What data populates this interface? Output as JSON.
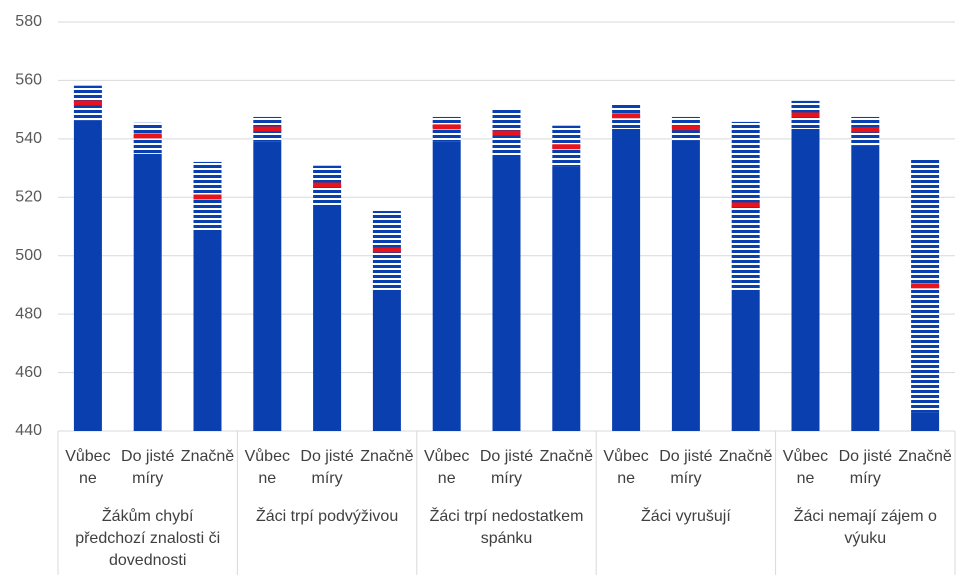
{
  "chart_data": {
    "type": "interval-bar",
    "groups": [
      "Žákům chybí předchozí znalosti či dovednosti",
      "Žáci trpí podvýživou",
      "Žáci trpí nedostatkem spánku",
      "Žáci vyrušují",
      "Žáci nemají zájem o výuku"
    ],
    "categories": [
      "Vůbec ne",
      "Do jisté míry",
      "Značně",
      "Vůbec ne",
      "Do jisté míry",
      "Značně",
      "Vůbec ne",
      "Do jisté míry",
      "Značně",
      "Vůbec ne",
      "Do jisté míry",
      "Značně",
      "Vůbec ne",
      "Do jisté míry",
      "Značně"
    ],
    "lower": [
      546.2,
      534.9,
      508.8,
      539,
      517.4,
      488.3,
      539,
      534.5,
      530.4,
      543.4,
      539.3,
      488.3,
      543.4,
      537.6,
      446.2
    ],
    "upper": [
      558.2,
      545.5,
      532.1,
      547.5,
      530.8,
      515.3,
      547.5,
      549.9,
      544.5,
      552,
      547.5,
      545.8,
      553,
      547.5,
      532.8
    ],
    "mean": [
      552.3,
      541,
      520.1,
      543.4,
      524.2,
      502,
      544.1,
      542,
      537.3,
      547.9,
      543.8,
      517.4,
      548.2,
      543.1,
      489.7
    ],
    "color": "#0a3fb0",
    "mean_color": "#e8141c",
    "ylim": [
      440,
      580
    ],
    "yticks": [
      440,
      460,
      480,
      500,
      520,
      540,
      560,
      580
    ],
    "grid": true
  }
}
